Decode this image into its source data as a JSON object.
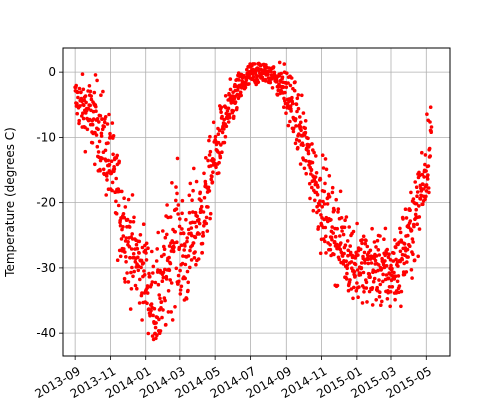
{
  "chart_data": {
    "type": "scatter",
    "title": "",
    "xlabel": "",
    "ylabel": "Temperature (degrees C)",
    "ylim": [
      -43.5,
      3.7
    ],
    "xlim": [
      "2013-08-11",
      "2015-06-11"
    ],
    "x_tick_labels": [
      "2013-09",
      "2013-11",
      "2014-01",
      "2014-03",
      "2014-05",
      "2014-07",
      "2014-09",
      "2014-11",
      "2015-01",
      "2015-03",
      "2015-05"
    ],
    "y_tick_labels": [
      "0",
      "-10",
      "-20",
      "-30",
      "-40"
    ],
    "y_ticks": [
      0,
      -10,
      -20,
      -30,
      -40
    ],
    "grid": true,
    "series": [
      {
        "color": "#ff0000",
        "marker": "circle",
        "description_points": [
          [
            "2013-09-01",
            -4
          ],
          [
            "2013-09-20",
            -6
          ],
          [
            "2013-10-10",
            -8
          ],
          [
            "2013-11-01",
            -14
          ],
          [
            "2013-11-20",
            -22
          ],
          [
            "2013-12-10",
            -28
          ],
          [
            "2014-01-01",
            -31
          ],
          [
            "2014-01-15",
            -36
          ],
          [
            "2014-02-01",
            -33
          ],
          [
            "2014-02-20",
            -24
          ],
          [
            "2014-03-10",
            -29
          ],
          [
            "2014-03-25",
            -24
          ],
          [
            "2014-04-10",
            -22
          ],
          [
            "2014-04-25",
            -15
          ],
          [
            "2014-05-10",
            -10
          ],
          [
            "2014-05-25",
            -6
          ],
          [
            "2014-06-10",
            -3
          ],
          [
            "2014-06-25",
            -1
          ],
          [
            "2014-07-10",
            0
          ],
          [
            "2014-07-25",
            0
          ],
          [
            "2014-08-10",
            -0.5
          ],
          [
            "2014-08-25",
            -2
          ],
          [
            "2014-09-10",
            -5
          ],
          [
            "2014-09-25",
            -9
          ],
          [
            "2014-10-10",
            -13
          ],
          [
            "2014-10-25",
            -18
          ],
          [
            "2014-11-10",
            -22
          ],
          [
            "2014-11-25",
            -25
          ],
          [
            "2014-12-10",
            -27
          ],
          [
            "2014-12-25",
            -29
          ],
          [
            "2015-01-10",
            -30
          ],
          [
            "2015-01-25",
            -30
          ],
          [
            "2015-02-10",
            -30
          ],
          [
            "2015-02-25",
            -31
          ],
          [
            "2015-03-10",
            -30
          ],
          [
            "2015-03-25",
            -27
          ],
          [
            "2015-04-10",
            -23
          ],
          [
            "2015-04-25",
            -17
          ],
          [
            "2015-05-05",
            -12
          ],
          [
            "2015-05-10",
            -9
          ]
        ],
        "scatter_spread": [
          [
            "2013-09-01",
            3
          ],
          [
            "2013-10-10",
            6
          ],
          [
            "2013-11-20",
            7
          ],
          [
            "2014-01-01",
            6
          ],
          [
            "2014-02-15",
            9
          ],
          [
            "2014-04-01",
            7
          ],
          [
            "2014-05-15",
            4
          ],
          [
            "2014-06-20",
            2
          ],
          [
            "2014-08-01",
            1.5
          ],
          [
            "2014-09-15",
            4
          ],
          [
            "2014-11-01",
            6
          ],
          [
            "2015-01-01",
            5
          ],
          [
            "2015-03-01",
            5
          ],
          [
            "2015-05-10",
            6
          ]
        ],
        "point_count": 1400
      }
    ]
  }
}
